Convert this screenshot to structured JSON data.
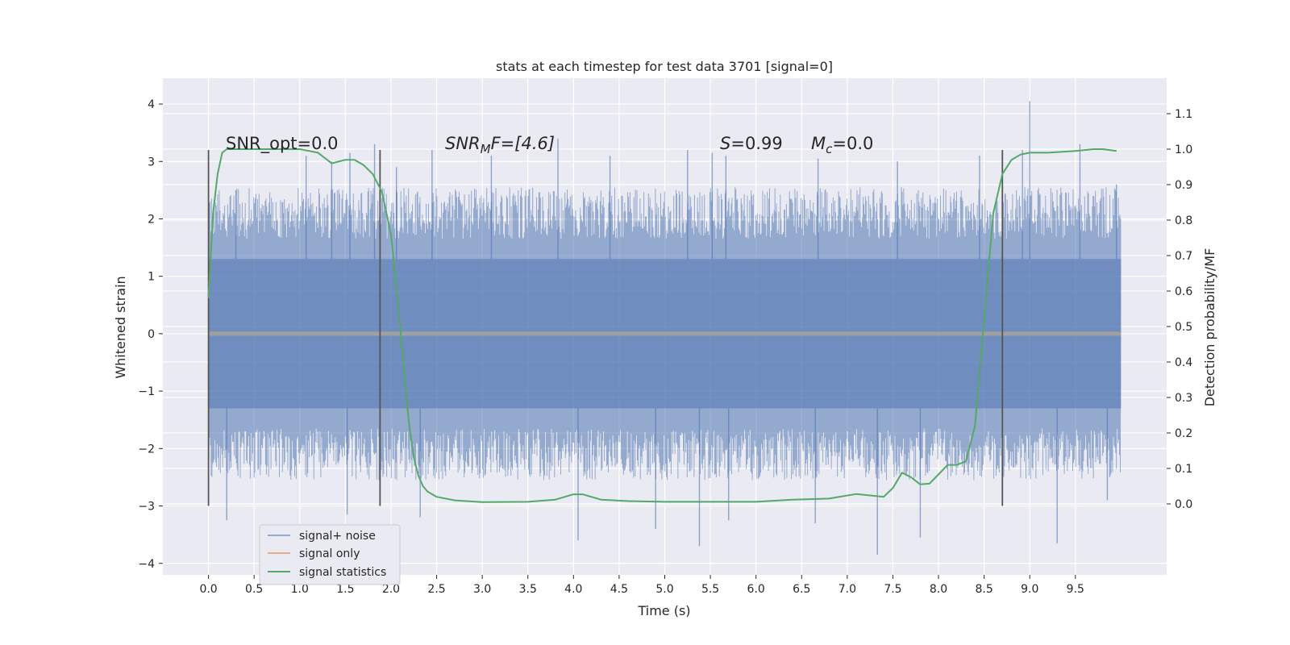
{
  "chart_data": {
    "type": "line",
    "title": "stats at each timestep for test data 3701 [signal=0]",
    "xlabel": "Time (s)",
    "ylabel": "Whitened strain",
    "ylabel_right": "Detection probability/MF",
    "xlim": [
      -0.5,
      10.5
    ],
    "ylim": [
      -4.2,
      4.45
    ],
    "ylim_right": [
      -0.2,
      1.2
    ],
    "x_ticks": [
      "0.0",
      "0.5",
      "1.0",
      "1.5",
      "2.0",
      "2.5",
      "3.0",
      "3.5",
      "4.0",
      "4.5",
      "5.0",
      "5.5",
      "6.0",
      "6.5",
      "7.0",
      "7.5",
      "8.0",
      "8.5",
      "9.0",
      "9.5"
    ],
    "y_ticks": [
      "4",
      "3",
      "2",
      "1",
      "0",
      "−1",
      "−2",
      "−3",
      "−4"
    ],
    "y_ticks_right": [
      "1.1",
      "1.0",
      "0.9",
      "0.8",
      "0.7",
      "0.6",
      "0.5",
      "0.4",
      "0.3",
      "0.2",
      "0.1",
      "0.0"
    ],
    "grid": true,
    "legend_position": "lower-left",
    "annotations": {
      "snr_opt": "SNR_opt=0.0",
      "snr_mf_sym": "SNR",
      "snr_mf_sub": "M",
      "snr_mf_rest": "F=[4.6]",
      "s_sym": "S",
      "s_rest": "=0.99",
      "mc_sym": "M",
      "mc_sub": "c",
      "mc_rest": "=0.0"
    },
    "vlines_x": [
      0.0,
      1.88,
      8.7
    ],
    "vline_y_range": [
      -3.0,
      3.2
    ],
    "series": [
      {
        "name": "signal+ noise",
        "color": "#4c72b0",
        "x_range": [
          0.0,
          10.0
        ],
        "envelope_top": 1.3,
        "envelope_bottom": -1.3,
        "spikes_max": [
          [
            0.3,
            2.5
          ],
          [
            1.07,
            3.1
          ],
          [
            1.35,
            3.0
          ],
          [
            1.55,
            3.15
          ],
          [
            1.82,
            3.3
          ],
          [
            2.06,
            2.9
          ],
          [
            2.45,
            3.2
          ],
          [
            3.1,
            3.1
          ],
          [
            3.83,
            3.4
          ],
          [
            4.4,
            3.1
          ],
          [
            5.25,
            3.2
          ],
          [
            5.52,
            3.15
          ],
          [
            5.67,
            3.1
          ],
          [
            6.68,
            3.05
          ],
          [
            7.55,
            3.0
          ],
          [
            8.45,
            3.1
          ],
          [
            8.92,
            3.2
          ],
          [
            9.0,
            4.05
          ],
          [
            9.55,
            3.3
          ],
          [
            9.95,
            2.6
          ]
        ],
        "spikes_min": [
          [
            0.2,
            -3.25
          ],
          [
            1.52,
            -3.15
          ],
          [
            2.32,
            -3.2
          ],
          [
            4.05,
            -3.6
          ],
          [
            4.9,
            -3.4
          ],
          [
            5.38,
            -3.7
          ],
          [
            5.7,
            -3.25
          ],
          [
            6.65,
            -3.3
          ],
          [
            7.33,
            -3.85
          ],
          [
            7.8,
            -3.55
          ],
          [
            9.3,
            -3.65
          ],
          [
            9.85,
            -2.9
          ]
        ]
      },
      {
        "name": "signal only",
        "color": "#dd8452",
        "x": [
          0.0,
          10.0
        ],
        "y": [
          0.0,
          0.0
        ]
      },
      {
        "name": "signal statistics",
        "color": "#55a868",
        "axis": "right",
        "x": [
          0.0,
          0.05,
          0.1,
          0.15,
          0.2,
          0.3,
          0.5,
          0.8,
          1.0,
          1.2,
          1.35,
          1.5,
          1.6,
          1.7,
          1.8,
          1.9,
          2.0,
          2.1,
          2.15,
          2.2,
          2.25,
          2.3,
          2.35,
          2.4,
          2.5,
          2.7,
          3.0,
          3.5,
          3.8,
          4.0,
          4.1,
          4.3,
          4.6,
          5.0,
          5.3,
          5.6,
          6.0,
          6.4,
          6.8,
          7.1,
          7.4,
          7.5,
          7.6,
          7.7,
          7.8,
          7.9,
          8.0,
          8.1,
          8.2,
          8.3,
          8.4,
          8.5,
          8.6,
          8.7,
          8.8,
          8.9,
          9.0,
          9.2,
          9.5,
          9.7,
          9.8,
          9.95
        ],
        "y": [
          0.58,
          0.82,
          0.93,
          0.99,
          1.0,
          1.0,
          1.0,
          1.0,
          1.0,
          0.99,
          0.96,
          0.97,
          0.97,
          0.955,
          0.93,
          0.88,
          0.76,
          0.5,
          0.35,
          0.22,
          0.13,
          0.08,
          0.05,
          0.035,
          0.02,
          0.01,
          0.005,
          0.006,
          0.012,
          0.027,
          0.027,
          0.012,
          0.008,
          0.006,
          0.006,
          0.006,
          0.006,
          0.012,
          0.015,
          0.028,
          0.02,
          0.045,
          0.088,
          0.075,
          0.055,
          0.057,
          0.083,
          0.11,
          0.11,
          0.12,
          0.22,
          0.52,
          0.82,
          0.93,
          0.97,
          0.985,
          0.99,
          0.99,
          0.995,
          1.0,
          1.0,
          0.995
        ]
      }
    ]
  }
}
